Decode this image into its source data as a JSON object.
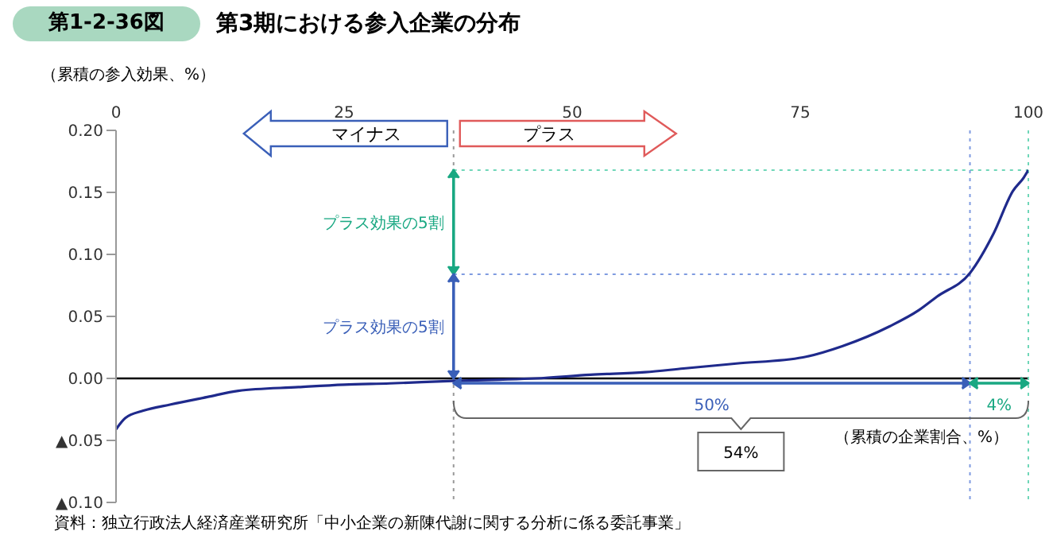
{
  "chart_data": {
    "type": "line",
    "title": "第3期における参入企業の分布",
    "subtitle": "第1-2-36図",
    "xlabel": "（累積の企業割合、%）",
    "ylabel": "（累積の参入効果、%）",
    "x": [
      0,
      1,
      3,
      6,
      10,
      13.4,
      20,
      25,
      30,
      37,
      42,
      46,
      52,
      58,
      62.2,
      68,
      75.3,
      79.6,
      84.8,
      88,
      90,
      93.6,
      96.2,
      98.3,
      99.5,
      100
    ],
    "series": [
      {
        "color": "#1f2a8c",
        "values": [
          -0.041,
          -0.032,
          -0.026,
          -0.021,
          -0.015,
          -0.01,
          -0.007,
          -0.005,
          -0.004,
          -0.002,
          -0.001,
          0,
          0.003,
          0.005,
          0.008,
          0.012,
          0.017,
          0.026,
          0.042,
          0.055,
          0.066,
          0.085,
          0.117,
          0.151,
          0.162,
          0.168
        ]
      }
    ],
    "xlim": [
      0,
      100
    ],
    "xticks": [
      0,
      25,
      50,
      75,
      100
    ],
    "ylim": [
      -0.1,
      0.2
    ],
    "yticks": [
      {
        "value": 0.2,
        "label": "0.20"
      },
      {
        "value": 0.15,
        "label": "0.15"
      },
      {
        "value": 0.1,
        "label": "0.10"
      },
      {
        "value": 0.05,
        "label": "0.05"
      },
      {
        "value": 0,
        "label": "0.00"
      },
      {
        "value": -0.05,
        "label": "▲0.05"
      },
      {
        "value": -0.1,
        "label": "▲0.10"
      }
    ],
    "marker": "none",
    "line_style": "solid",
    "ref_lines": [
      {
        "axis": "y",
        "value": 0,
        "color": "#000000",
        "line_style": "solid"
      },
      {
        "axis": "x",
        "value": 37,
        "color": "#999999",
        "line_style": "dotted"
      },
      {
        "axis": "y",
        "value": 0.084,
        "color": "#7f9be0",
        "line_style": "dotted"
      },
      {
        "axis": "y",
        "value": 0.168,
        "color": "#6fd6b8",
        "line_style": "dotted"
      },
      {
        "axis": "x",
        "value": 93.6,
        "color": "#7f9be0",
        "line_style": "dotted"
      },
      {
        "axis": "x",
        "value": 100,
        "color": "#6fd6b8",
        "line_style": "dotted"
      }
    ],
    "annotations": [
      "マイナス",
      "プラス",
      "プラス効果の5割",
      "プラス効果の5割",
      "50%",
      "4%",
      "54%",
      "資料：独立行政法人経済産業研究所「中小企業の新陳代謝に関する分析に係る委託事業」"
    ]
  }
}
